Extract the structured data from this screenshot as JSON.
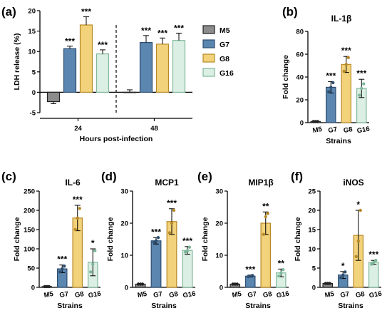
{
  "colors": {
    "M5": "#8c8c8c",
    "G7": "#5b86b0",
    "G8": "#f2d27a",
    "G16": "#dcefe4",
    "G7_edge": "#2f4e70",
    "G8_edge": "#b78a28",
    "G16_edge": "#7fb79a",
    "M5_edge": "#222222"
  },
  "legend": {
    "placement": "right",
    "entries": [
      "M5",
      "G7",
      "G8",
      "G16"
    ]
  },
  "chart_data": [
    {
      "id": "a",
      "panel_label": "(a)",
      "type": "bar",
      "title": "",
      "xlabel": "Hours post-infection",
      "ylabel": "LDH release (%)",
      "ylim": [
        -5,
        20
      ],
      "yticks": [
        -5,
        0,
        5,
        10,
        15,
        20
      ],
      "yticks_labels": [
        "-5",
        "0",
        "5",
        "10",
        "15",
        "20"
      ],
      "categories": [
        "24",
        "48"
      ],
      "series": [
        {
          "name": "M5",
          "values": [
            -2.3,
            0.0
          ],
          "errors": [
            0.5,
            0.6
          ],
          "sig": [
            "",
            ""
          ]
        },
        {
          "name": "G7",
          "values": [
            10.7,
            12.2
          ],
          "errors": [
            0.6,
            1.7
          ],
          "sig": [
            "***",
            "***"
          ]
        },
        {
          "name": "G8",
          "values": [
            16.5,
            11.8
          ],
          "errors": [
            2.0,
            1.5
          ],
          "sig": [
            "***",
            "***"
          ]
        },
        {
          "name": "G16",
          "values": [
            9.4,
            12.7
          ],
          "errors": [
            1.0,
            1.8
          ],
          "sig": [
            "***",
            "***"
          ]
        }
      ],
      "divider_between_groups": true,
      "grid": false
    },
    {
      "id": "b",
      "panel_label": "(b)",
      "type": "bar",
      "title": "IL-1β",
      "xlabel": "Strains",
      "ylabel": "Fold change",
      "ylim": [
        0,
        80
      ],
      "yticks": [
        0,
        20,
        40,
        60,
        80
      ],
      "yticks_labels": [
        "0",
        "20",
        "40",
        "60",
        "80"
      ],
      "categories": [
        "M5",
        "G7",
        "G8",
        "G16"
      ],
      "values": [
        1,
        31,
        51,
        30
      ],
      "errors": [
        0.3,
        5,
        7,
        8
      ],
      "sig": [
        "",
        "***",
        "***",
        "***"
      ],
      "points": [
        [
          1,
          1,
          1
        ],
        [
          27,
          31,
          35
        ],
        [
          45,
          51,
          57
        ],
        [
          24,
          30,
          34
        ]
      ],
      "grid": false
    },
    {
      "id": "c",
      "panel_label": "(c)",
      "type": "bar",
      "title": "IL-6",
      "xlabel": "Strains",
      "ylabel": "Fold change",
      "ylim": [
        0,
        250
      ],
      "yticks": [
        0,
        50,
        100,
        150,
        200,
        250
      ],
      "yticks_labels": [
        "0",
        "50",
        "100",
        "150",
        "200",
        "250"
      ],
      "categories": [
        "M5",
        "G7",
        "G8",
        "G16"
      ],
      "values": [
        2,
        48,
        180,
        65
      ],
      "errors": [
        1,
        10,
        33,
        35
      ],
      "sig": [
        "",
        "***",
        "***",
        "*"
      ],
      "points": [
        [
          2,
          2,
          2
        ],
        [
          40,
          48,
          55
        ],
        [
          150,
          180,
          205
        ],
        [
          40,
          60,
          95
        ]
      ],
      "grid": false
    },
    {
      "id": "d",
      "panel_label": "(d)",
      "type": "bar",
      "title": "MCP1",
      "xlabel": "Strains",
      "ylabel": "Fold change",
      "ylim": [
        0,
        30
      ],
      "yticks": [
        0,
        10,
        20,
        30
      ],
      "yticks_labels": [
        "0",
        "10",
        "20",
        "30"
      ],
      "categories": [
        "M5",
        "G7",
        "G8",
        "G16"
      ],
      "values": [
        1,
        14.5,
        20.5,
        11.5
      ],
      "errors": [
        0.2,
        1.0,
        4.0,
        1.2
      ],
      "sig": [
        "",
        "***",
        "***",
        "***"
      ],
      "points": [
        [
          1,
          1,
          1
        ],
        [
          14,
          14.5,
          15.5
        ],
        [
          17,
          20,
          24
        ],
        [
          11,
          11.5,
          12.5
        ]
      ],
      "grid": false
    },
    {
      "id": "e",
      "panel_label": "(e)",
      "type": "bar",
      "title": "MIP1β",
      "xlabel": "Strains",
      "ylabel": "Fold change",
      "ylim": [
        0,
        30
      ],
      "yticks": [
        0,
        10,
        20,
        30
      ],
      "yticks_labels": [
        "0",
        "10",
        "20",
        "30"
      ],
      "categories": [
        "M5",
        "G7",
        "G8",
        "G16"
      ],
      "values": [
        1,
        3.5,
        20,
        4.5
      ],
      "errors": [
        0.2,
        0.3,
        3.5,
        1.2
      ],
      "sig": [
        "",
        "***",
        "**",
        "**"
      ],
      "points": [
        [
          1,
          1,
          1
        ],
        [
          3.3,
          3.5,
          3.7
        ],
        [
          16.5,
          22,
          23
        ],
        [
          3.5,
          4.5,
          5.5
        ]
      ],
      "grid": false
    },
    {
      "id": "f",
      "panel_label": "(f)",
      "type": "bar",
      "title": "iNOS",
      "xlabel": "Strains",
      "ylabel": "Fold change",
      "ylim": [
        0,
        25
      ],
      "yticks": [
        0,
        5,
        10,
        15,
        20,
        25
      ],
      "yticks_labels": [
        "0",
        "5",
        "10",
        "15",
        "20",
        "25"
      ],
      "categories": [
        "M5",
        "G7",
        "G8",
        "G16"
      ],
      "values": [
        1,
        3.2,
        13.5,
        6.5
      ],
      "errors": [
        0.2,
        0.9,
        6.5,
        0.5
      ],
      "sig": [
        "",
        "*",
        "*",
        "***"
      ],
      "points": [
        [
          1,
          1,
          1
        ],
        [
          2.5,
          3.2,
          4
        ],
        [
          8,
          12,
          20
        ],
        [
          6,
          6.5,
          7
        ]
      ],
      "grid": false
    }
  ]
}
